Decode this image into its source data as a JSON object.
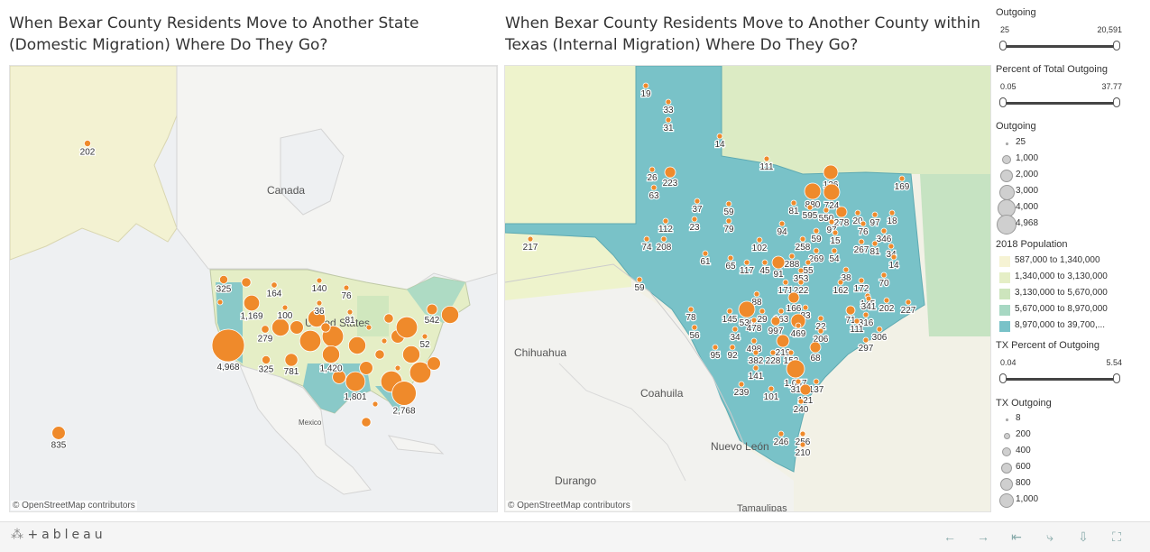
{
  "titles": {
    "left": "When Bexar County Residents Move to Another State (Domestic Migration) Where Do They Go?",
    "right": "When Bexar County Residents Move to Another County within Texas (Internal Migration) Where Do They Go?"
  },
  "credits": {
    "left": "© OpenStreetMap contributors",
    "right": "© OpenStreetMap contributors"
  },
  "map_labels": {
    "canada": "Canada",
    "united_states": "United States",
    "mexico": "Mexico",
    "chihuahua": "Chihuahua",
    "coahuila": "Coahuila",
    "nuevo_leon": "Nuevo León",
    "durango": "Durango",
    "tamaulipas": "Tamaulipas"
  },
  "domestic_markers": [
    {
      "label": "202",
      "value": 202
    },
    {
      "label": "835",
      "value": 835
    },
    {
      "label": "325",
      "value": 325
    },
    {
      "label": "1,169",
      "value": 1169
    },
    {
      "label": "164",
      "value": 164
    },
    {
      "label": "140",
      "value": 140
    },
    {
      "label": "76",
      "value": 76
    },
    {
      "label": "36",
      "value": 36
    },
    {
      "label": "100",
      "value": 100
    },
    {
      "label": "81",
      "value": 81
    },
    {
      "label": "279",
      "value": 279
    },
    {
      "label": "4,968",
      "value": 4968
    },
    {
      "label": "325",
      "value": 325
    },
    {
      "label": "781",
      "value": 781
    },
    {
      "label": "1,420",
      "value": 1420
    },
    {
      "label": "1,801",
      "value": 1801
    },
    {
      "label": "2,768",
      "value": 2768
    },
    {
      "label": "542",
      "value": 542
    },
    {
      "label": "52",
      "value": 52
    }
  ],
  "texas_markers": [
    {
      "label": "19"
    },
    {
      "label": "33"
    },
    {
      "label": "31"
    },
    {
      "label": "14"
    },
    {
      "label": "26"
    },
    {
      "label": "223"
    },
    {
      "label": "63"
    },
    {
      "label": "111"
    },
    {
      "label": "136"
    },
    {
      "label": "169"
    },
    {
      "label": "37"
    },
    {
      "label": "59"
    },
    {
      "label": "880"
    },
    {
      "label": "724"
    },
    {
      "label": "81"
    },
    {
      "label": "595"
    },
    {
      "label": "550"
    },
    {
      "label": "278"
    },
    {
      "label": "20"
    },
    {
      "label": "97"
    },
    {
      "label": "18"
    },
    {
      "label": "112"
    },
    {
      "label": "23"
    },
    {
      "label": "79"
    },
    {
      "label": "94"
    },
    {
      "label": "97"
    },
    {
      "label": "59"
    },
    {
      "label": "15"
    },
    {
      "label": "76"
    },
    {
      "label": "346"
    },
    {
      "label": "217"
    },
    {
      "label": "74"
    },
    {
      "label": "208"
    },
    {
      "label": "102"
    },
    {
      "label": "258"
    },
    {
      "label": "269"
    },
    {
      "label": "54"
    },
    {
      "label": "267"
    },
    {
      "label": "81"
    },
    {
      "label": "34"
    },
    {
      "label": "61"
    },
    {
      "label": "65"
    },
    {
      "label": "117"
    },
    {
      "label": "45"
    },
    {
      "label": "288"
    },
    {
      "label": "91"
    },
    {
      "label": "55"
    },
    {
      "label": "38"
    },
    {
      "label": "14"
    },
    {
      "label": "353"
    },
    {
      "label": "70"
    },
    {
      "label": "59"
    },
    {
      "label": "171"
    },
    {
      "label": "222"
    },
    {
      "label": "162"
    },
    {
      "label": "172"
    },
    {
      "label": "88"
    },
    {
      "label": "166"
    },
    {
      "label": "145"
    },
    {
      "label": "341"
    },
    {
      "label": "202"
    },
    {
      "label": "227"
    },
    {
      "label": "530"
    },
    {
      "label": "29"
    },
    {
      "label": "163"
    },
    {
      "label": "83"
    },
    {
      "label": "71"
    },
    {
      "label": "316"
    },
    {
      "label": "78"
    },
    {
      "label": "145"
    },
    {
      "label": "478"
    },
    {
      "label": "997"
    },
    {
      "label": "27"
    },
    {
      "label": "22"
    },
    {
      "label": "111"
    },
    {
      "label": "56"
    },
    {
      "label": "34"
    },
    {
      "label": "469"
    },
    {
      "label": "206"
    },
    {
      "label": "306"
    },
    {
      "label": "297"
    },
    {
      "label": "95"
    },
    {
      "label": "92"
    },
    {
      "label": "498"
    },
    {
      "label": "219"
    },
    {
      "label": "382"
    },
    {
      "label": "228"
    },
    {
      "label": "153"
    },
    {
      "label": "68"
    },
    {
      "label": "141"
    },
    {
      "label": "1,057"
    },
    {
      "label": "315"
    },
    {
      "label": "137"
    },
    {
      "label": "239"
    },
    {
      "label": "101"
    },
    {
      "label": "121"
    },
    {
      "label": "240"
    },
    {
      "label": "246"
    },
    {
      "label": "256"
    },
    {
      "label": "210"
    }
  ],
  "controls": {
    "outgoing_filter": {
      "title": "Outgoing",
      "min": "25",
      "max": "20,591"
    },
    "percent_filter": {
      "title": "Percent of Total Outgoing",
      "min": "0.05",
      "max": "37.77"
    },
    "outgoing_size": {
      "title": "Outgoing",
      "items": [
        "25",
        "1,000",
        "2,000",
        "3,000",
        "4,000",
        "4,968"
      ]
    },
    "population": {
      "title": "2018 Population",
      "items": [
        {
          "label": "587,000 to 1,340,000",
          "color": "#f6f3d4"
        },
        {
          "label": "1,340,000 to 3,130,000",
          "color": "#e5eec6"
        },
        {
          "label": "3,130,000 to 5,670,000",
          "color": "#cde5bd"
        },
        {
          "label": "5,670,000 to 8,970,000",
          "color": "#a7d8c3"
        },
        {
          "label": "8,970,000 to 39,700,...",
          "color": "#79c2c8"
        }
      ]
    },
    "tx_percent_filter": {
      "title": "TX Percent of Outgoing",
      "min": "0.04",
      "max": "5.54"
    },
    "tx_outgoing_size": {
      "title": "TX Outgoing",
      "items": [
        "8",
        "200",
        "400",
        "600",
        "800",
        "1,000"
      ]
    }
  },
  "toolbar": {
    "logo": "+ableau"
  },
  "colors": {
    "marker": "#ef8a2b",
    "marker_border": "#ffffff",
    "texas": "#79c2c8",
    "land": "#f6f3d4",
    "water": "#eef0f2"
  }
}
